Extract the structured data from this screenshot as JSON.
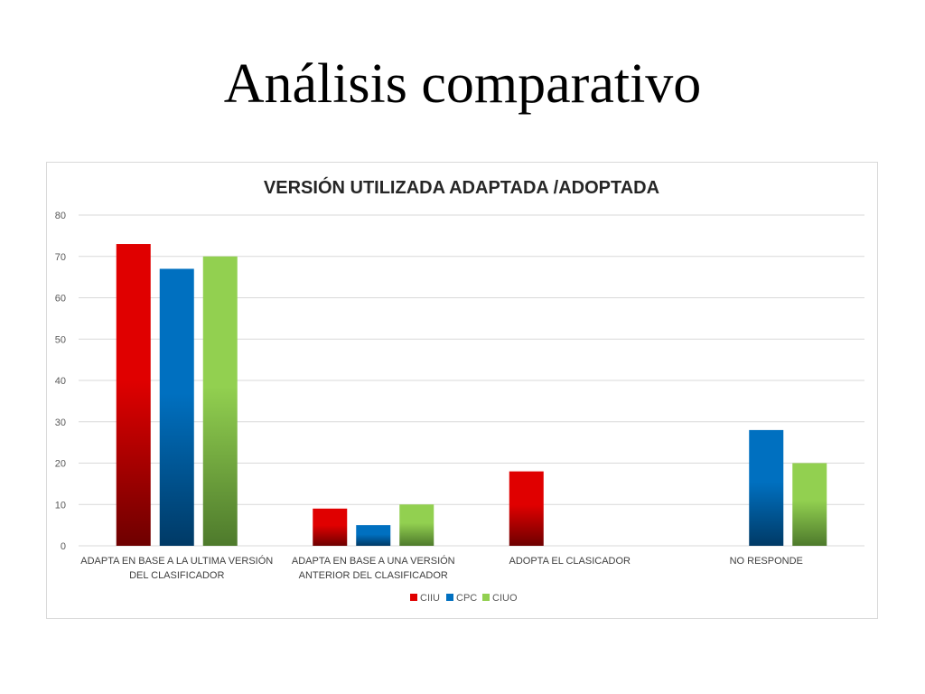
{
  "slide": {
    "title": "Análisis comparativo"
  },
  "colors": {
    "CIIU": "#e00000",
    "CPC": "#0070c0",
    "CIUO": "#92d050",
    "grid": "#d9d9d9",
    "text": "#404040"
  },
  "chart_data": {
    "type": "bar",
    "title": "VERSIÓN UTILIZADA ADAPTADA /ADOPTADA",
    "xlabel": "",
    "ylabel": "",
    "ylim": [
      0,
      80
    ],
    "yticks": [
      0,
      10,
      20,
      30,
      40,
      50,
      60,
      70,
      80
    ],
    "grid": true,
    "legend_position": "bottom",
    "categories": [
      [
        "ADAPTA EN BASE A LA ULTIMA VERSIÓN",
        "DEL CLASIFICADOR"
      ],
      [
        "ADAPTA EN BASE A UNA VERSIÓN",
        "ANTERIOR DEL CLASIFICADOR"
      ],
      [
        "ADOPTA EL CLASICADOR"
      ],
      [
        "NO RESPONDE"
      ]
    ],
    "series": [
      {
        "name": "CIIU",
        "values": [
          73,
          9,
          18,
          null
        ]
      },
      {
        "name": "CPC",
        "values": [
          67,
          5,
          null,
          28
        ]
      },
      {
        "name": "CIUO",
        "values": [
          70,
          10,
          null,
          20
        ]
      }
    ]
  }
}
